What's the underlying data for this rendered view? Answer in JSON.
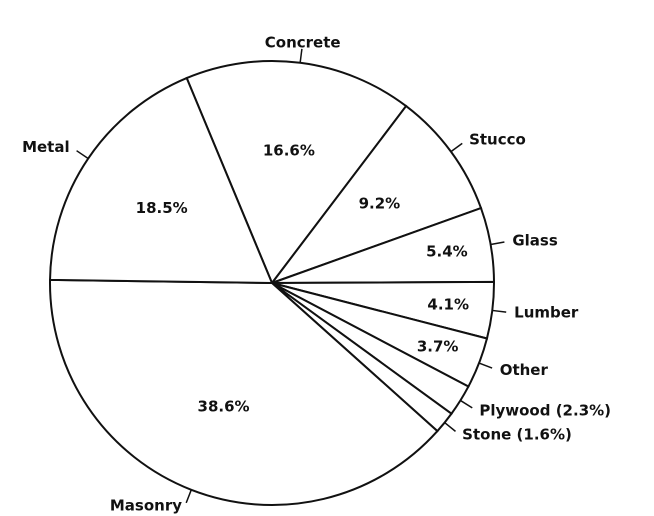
{
  "chart_data": {
    "type": "pie",
    "categories": [
      "Concrete",
      "Stucco",
      "Glass",
      "Lumber",
      "Other",
      "Plywood (2.3%)",
      "Stone (1.6%)",
      "Masonry",
      "Metal"
    ],
    "values": [
      16.6,
      9.2,
      5.4,
      4.1,
      3.7,
      2.3,
      1.6,
      38.6,
      18.5
    ],
    "value_labels": [
      "16.6%",
      "9.2%",
      "5.4%",
      "4.1%",
      "3.7%",
      null,
      null,
      "38.6%",
      "18.5%"
    ],
    "color": "#ffffff"
  }
}
